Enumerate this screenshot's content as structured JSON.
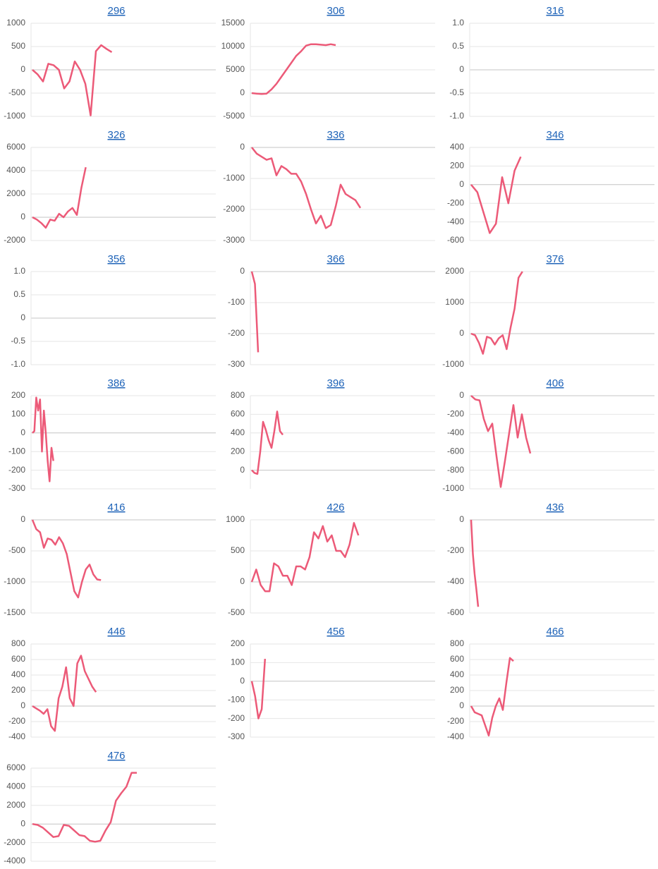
{
  "chart_data": [
    {
      "type": "line",
      "title": "296",
      "color": "#ec5a78",
      "ylim": [
        -1000,
        1000
      ],
      "yticks": [
        -1000,
        -500,
        0,
        500,
        1000
      ],
      "grid": true,
      "values": [
        0,
        -100,
        -250,
        130,
        100,
        0,
        -400,
        -250,
        180,
        0,
        -300,
        -980,
        400,
        530,
        450,
        380
      ]
    },
    {
      "type": "line",
      "title": "306",
      "color": "#ec5a78",
      "ylim": [
        -5000,
        15000
      ],
      "yticks": [
        -5000,
        0,
        5000,
        10000,
        15000
      ],
      "grid": true,
      "values": [
        0,
        -100,
        -200,
        -100,
        800,
        2000,
        3500,
        5000,
        6500,
        8000,
        9000,
        10200,
        10500,
        10500,
        10400,
        10300,
        10500,
        10300
      ]
    },
    {
      "type": "line",
      "title": "316",
      "color": "#ec5a78",
      "ylim": [
        -1,
        1
      ],
      "yticks": [
        {
          "value": -1,
          "label": "-1.0"
        },
        -0.5,
        0,
        0.5,
        {
          "value": 1,
          "label": "1.0"
        }
      ],
      "grid": true,
      "values": []
    },
    {
      "type": "line",
      "title": "326",
      "color": "#ec5a78",
      "ylim": [
        -2000,
        6000
      ],
      "yticks": [
        -2000,
        0,
        2000,
        4000,
        6000
      ],
      "grid": true,
      "values": [
        0,
        -200,
        -500,
        -900,
        -200,
        -300,
        300,
        0,
        500,
        800,
        200,
        2500,
        4300
      ]
    },
    {
      "type": "line",
      "title": "336",
      "color": "#ec5a78",
      "ylim": [
        -3000,
        0
      ],
      "yticks": [
        -3000,
        -2000,
        -1000,
        0
      ],
      "grid": true,
      "values": [
        0,
        -200,
        -300,
        -400,
        -350,
        -900,
        -600,
        -700,
        -850,
        -850,
        -1100,
        -1500,
        -2000,
        -2450,
        -2200,
        -2600,
        -2500,
        -1900,
        -1200,
        -1500,
        -1600,
        -1700,
        -1950
      ]
    },
    {
      "type": "line",
      "title": "346",
      "color": "#ec5a78",
      "ylim": [
        -600,
        400
      ],
      "yticks": [
        -600,
        -400,
        -200,
        0,
        200,
        400
      ],
      "grid": true,
      "values": [
        0,
        -80,
        -300,
        -520,
        -420,
        80,
        -200,
        150,
        300
      ]
    },
    {
      "type": "line",
      "title": "356",
      "color": "#ec5a78",
      "ylim": [
        -1,
        1
      ],
      "yticks": [
        {
          "value": -1,
          "label": "-1.0"
        },
        -0.5,
        0,
        0.5,
        {
          "value": 1,
          "label": "1.0"
        }
      ],
      "grid": true,
      "values": []
    },
    {
      "type": "line",
      "title": "366",
      "color": "#ec5a78",
      "ylim": [
        -300,
        0
      ],
      "yticks": [
        -300,
        -200,
        -100,
        0
      ],
      "grid": true,
      "values": [
        0,
        -40,
        -260
      ]
    },
    {
      "type": "line",
      "title": "376",
      "color": "#ec5a78",
      "ylim": [
        -1000,
        2000
      ],
      "yticks": [
        -1000,
        0,
        1000,
        2000
      ],
      "grid": true,
      "values": [
        0,
        -50,
        -300,
        -650,
        -100,
        -150,
        -350,
        -150,
        -50,
        -500,
        200,
        800,
        1800,
        2000
      ]
    },
    {
      "type": "line",
      "title": "386",
      "color": "#ec5a78",
      "ylim": [
        -300,
        200
      ],
      "yticks": [
        -300,
        -200,
        -100,
        0,
        100,
        200
      ],
      "grid": true,
      "values": [
        0,
        10,
        190,
        120,
        180,
        -100,
        120,
        0,
        -150,
        -260,
        -80,
        -150
      ]
    },
    {
      "type": "line",
      "title": "396",
      "color": "#ec5a78",
      "ylim": [
        -200,
        800
      ],
      "yticks": [
        0,
        200,
        400,
        600,
        800
      ],
      "grid": true,
      "values": [
        0,
        -30,
        -40,
        200,
        520,
        430,
        320,
        240,
        420,
        630,
        420,
        380
      ]
    },
    {
      "type": "line",
      "title": "406",
      "color": "#ec5a78",
      "ylim": [
        -1000,
        0
      ],
      "yticks": [
        -1000,
        -800,
        -600,
        -400,
        -200,
        0
      ],
      "grid": true,
      "values": [
        0,
        -40,
        -50,
        -250,
        -380,
        -300,
        -650,
        -980,
        -700,
        -400,
        -100,
        -450,
        -200,
        -450,
        -620
      ]
    },
    {
      "type": "line",
      "title": "416",
      "color": "#ec5a78",
      "ylim": [
        -1500,
        0
      ],
      "yticks": [
        -1500,
        -1000,
        -500,
        0
      ],
      "grid": true,
      "values": [
        0,
        -150,
        -200,
        -450,
        -300,
        -320,
        -400,
        -280,
        -380,
        -550,
        -850,
        -1150,
        -1250,
        -1000,
        -800,
        -720,
        -880,
        -960,
        -970
      ]
    },
    {
      "type": "line",
      "title": "426",
      "color": "#ec5a78",
      "ylim": [
        -500,
        1000
      ],
      "yticks": [
        -500,
        0,
        500,
        1000
      ],
      "grid": true,
      "values": [
        0,
        200,
        -50,
        -150,
        -150,
        300,
        250,
        100,
        100,
        -50,
        250,
        250,
        200,
        400,
        800,
        700,
        900,
        650,
        750,
        500,
        500,
        400,
        600,
        950,
        750
      ]
    },
    {
      "type": "line",
      "title": "436",
      "color": "#ec5a78",
      "ylim": [
        -600,
        0
      ],
      "yticks": [
        -600,
        -400,
        -200,
        0
      ],
      "grid": true,
      "values": [
        0,
        -220,
        -350,
        -450,
        -560
      ]
    },
    {
      "type": "line",
      "title": "446",
      "color": "#ec5a78",
      "ylim": [
        -400,
        800
      ],
      "yticks": [
        -400,
        -200,
        0,
        200,
        400,
        600,
        800
      ],
      "grid": true,
      "values": [
        0,
        -30,
        -60,
        -100,
        -40,
        -260,
        -320,
        100,
        250,
        500,
        100,
        0,
        550,
        650,
        450,
        350,
        250,
        180
      ]
    },
    {
      "type": "line",
      "title": "456",
      "color": "#ec5a78",
      "ylim": [
        -300,
        200
      ],
      "yticks": [
        -300,
        -200,
        -100,
        0,
        100,
        200
      ],
      "grid": true,
      "values": [
        0,
        -80,
        -200,
        -150,
        120
      ]
    },
    {
      "type": "line",
      "title": "466",
      "color": "#ec5a78",
      "ylim": [
        -400,
        800
      ],
      "yticks": [
        -400,
        -200,
        0,
        200,
        400,
        600,
        800
      ],
      "grid": true,
      "values": [
        0,
        -80,
        -100,
        -120,
        -250,
        -380,
        -150,
        0,
        100,
        -50,
        300,
        620,
        580
      ]
    },
    {
      "type": "line",
      "title": "476",
      "color": "#ec5a78",
      "ylim": [
        -4000,
        6000
      ],
      "yticks": [
        -4000,
        -2000,
        0,
        2000,
        4000,
        6000
      ],
      "grid": true,
      "values": [
        0,
        -100,
        -400,
        -900,
        -1400,
        -1300,
        -100,
        -200,
        -700,
        -1200,
        -1300,
        -1800,
        -1900,
        -1800,
        -700,
        200,
        2500,
        3300,
        4000,
        5500,
        5500
      ]
    }
  ]
}
